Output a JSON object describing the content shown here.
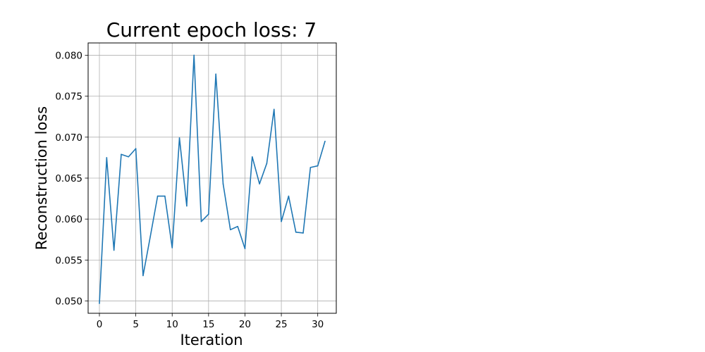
{
  "chart_data": {
    "type": "line",
    "title": "Current epoch loss: 7",
    "xlabel": "Iteration",
    "ylabel": "Reconstruction loss",
    "xlim": [
      -1.55,
      32.55
    ],
    "ylim": [
      0.0485,
      0.0815
    ],
    "xticks": [
      0,
      5,
      10,
      15,
      20,
      25,
      30
    ],
    "yticks": [
      0.05,
      0.055,
      0.06,
      0.065,
      0.07,
      0.075,
      0.08
    ],
    "ytick_labels": [
      "0.050",
      "0.055",
      "0.060",
      "0.065",
      "0.070",
      "0.075",
      "0.080"
    ],
    "grid": true,
    "line_color": "#1f77b4",
    "series": [
      {
        "x": [
          0,
          1,
          2,
          3,
          4,
          5,
          6,
          7,
          8,
          9,
          10,
          11,
          12,
          13,
          14,
          15,
          16,
          17,
          18,
          19,
          20,
          21,
          22,
          23,
          24,
          25,
          26,
          27,
          28,
          29,
          30,
          31
        ],
        "values": [
          0.0497,
          0.0675,
          0.0562,
          0.0679,
          0.0676,
          0.0686,
          0.0531,
          0.0579,
          0.0628,
          0.0628,
          0.0565,
          0.0699,
          0.0616,
          0.08,
          0.0597,
          0.0606,
          0.0777,
          0.0643,
          0.0587,
          0.0591,
          0.0564,
          0.0676,
          0.0643,
          0.0668,
          0.0734,
          0.0597,
          0.0628,
          0.0584,
          0.0583,
          0.0663,
          0.0665,
          0.0695
        ]
      }
    ]
  }
}
